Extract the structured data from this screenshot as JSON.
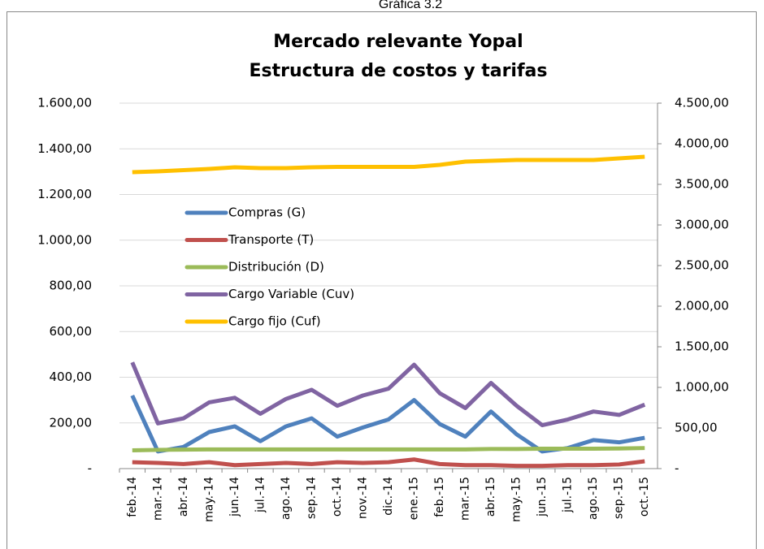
{
  "header": {
    "caption": "Gráfica 3.2"
  },
  "chart_data": {
    "type": "line",
    "title": "Mercado relevante Yopal",
    "subtitle": "Estructura de costos y tarifas",
    "categories": [
      "feb.-14",
      "mar.-14",
      "abr.-14",
      "may.-14",
      "jun.-14",
      "jul.-14",
      "ago.-14",
      "sep.-14",
      "oct.-14",
      "nov.-14",
      "dic.-14",
      "ene.-15",
      "feb.-15",
      "mar.-15",
      "abr.-15",
      "may.-15",
      "jun.-15",
      "jul.-15",
      "ago.-15",
      "sep.-15",
      "oct.-15"
    ],
    "series": [
      {
        "name": "Compras (G)",
        "color": "#4f81bd",
        "values": [
          320,
          75,
          95,
          160,
          185,
          120,
          185,
          220,
          140,
          180,
          215,
          300,
          195,
          140,
          250,
          150,
          75,
          90,
          125,
          115,
          135
        ]
      },
      {
        "name": "Transporte (T)",
        "color": "#c0504d",
        "values": [
          28,
          25,
          20,
          28,
          15,
          20,
          25,
          20,
          28,
          25,
          28,
          40,
          20,
          15,
          15,
          12,
          12,
          15,
          15,
          18,
          32
        ]
      },
      {
        "name": "Distribución (D)",
        "color": "#9bbb59",
        "values": [
          80,
          82,
          83,
          84,
          84,
          84,
          84,
          84,
          84,
          84,
          84,
          84,
          84,
          84,
          86,
          86,
          87,
          87,
          87,
          88,
          90
        ]
      },
      {
        "name": "Cargo Variable (Cuv)",
        "color": "#8064a2",
        "values": [
          465,
          198,
          220,
          290,
          310,
          240,
          305,
          345,
          275,
          320,
          350,
          455,
          330,
          265,
          375,
          275,
          190,
          215,
          250,
          235,
          280
        ]
      },
      {
        "name": "Cargo fijo (Cuf)",
        "color": "#ffc000",
        "axis": "y2",
        "values": [
          3650,
          3660,
          3675,
          3690,
          3710,
          3700,
          3700,
          3710,
          3715,
          3715,
          3715,
          3715,
          3740,
          3780,
          3790,
          3800,
          3800,
          3800,
          3800,
          3820,
          3840
        ]
      }
    ],
    "ylim": [
      0,
      1600
    ],
    "yticks": [
      {
        "value": 0,
        "label": "-"
      },
      {
        "value": 200,
        "label": "200,00"
      },
      {
        "value": 400,
        "label": "400,00"
      },
      {
        "value": 600,
        "label": "600,00"
      },
      {
        "value": 800,
        "label": "800,00"
      },
      {
        "value": 1000,
        "label": "1.000,00"
      },
      {
        "value": 1200,
        "label": "1.200,00"
      },
      {
        "value": 1400,
        "label": "1.400,00"
      },
      {
        "value": 1600,
        "label": "1.600,00"
      }
    ],
    "y2lim": [
      0,
      4500
    ],
    "y2ticks": [
      {
        "value": 0,
        "label": "-"
      },
      {
        "value": 500,
        "label": "500,00"
      },
      {
        "value": 1000,
        "label": "1.000,00"
      },
      {
        "value": 1500,
        "label": "1.500,00"
      },
      {
        "value": 2000,
        "label": "2.000,00"
      },
      {
        "value": 2500,
        "label": "2.500,00"
      },
      {
        "value": 3000,
        "label": "3.000,00"
      },
      {
        "value": 3500,
        "label": "3.500,00"
      },
      {
        "value": 4000,
        "label": "4.000,00"
      },
      {
        "value": 4500,
        "label": "4.500,00"
      }
    ],
    "grid": true
  }
}
